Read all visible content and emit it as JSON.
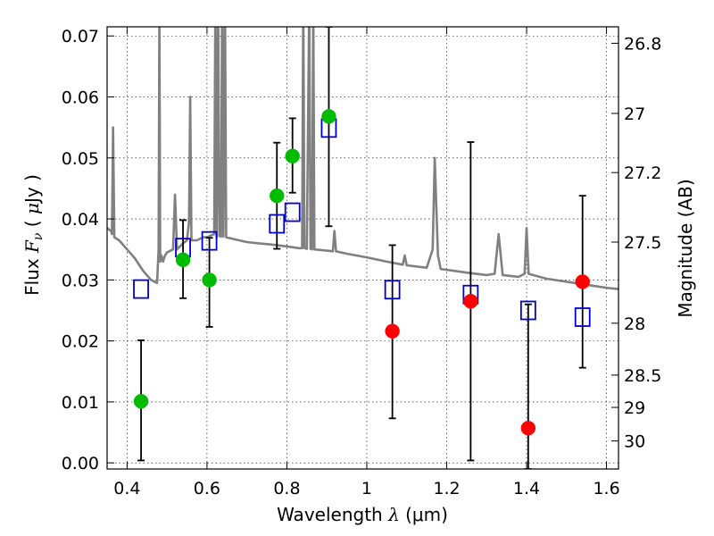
{
  "chart_data": {
    "type": "scatter",
    "xlabel": "Wavelength  λ (μm)",
    "xlabel_main": "Wavelength",
    "xlabel_lambda": "λ",
    "xlabel_unit": "(μm)",
    "ylabel": "Flux  Fν  ( μJy )",
    "ylabel_main": "Flux",
    "ylabel_F": "F",
    "ylabel_nu": "ν",
    "ylabel_unit_open": "(",
    "ylabel_unit_mu": "μ",
    "ylabel_unit_close": "Jy )",
    "y2label": "Magnitude (AB)",
    "xlim": [
      0.35,
      1.63
    ],
    "ylim": [
      -0.001,
      0.0715
    ],
    "grid": true,
    "xticks": [
      0.4,
      0.6,
      0.8,
      1.0,
      1.2,
      1.4,
      1.6
    ],
    "xtick_labels": [
      "0.4",
      "0.6",
      "0.8",
      "1",
      "1.2",
      "1.4",
      "1.6"
    ],
    "yticks": [
      0.0,
      0.01,
      0.02,
      0.03,
      0.04,
      0.05,
      0.06,
      0.07
    ],
    "ytick_labels": [
      "0.00",
      "0.01",
      "0.02",
      "0.03",
      "0.04",
      "0.05",
      "0.06",
      "0.07"
    ],
    "magnitude_ticks": [
      {
        "label": "26.8",
        "flux": 0.0688
      },
      {
        "label": "27",
        "flux": 0.0573
      },
      {
        "label": "27.2",
        "flux": 0.0476
      },
      {
        "label": "27.5",
        "flux": 0.0362
      },
      {
        "label": "28",
        "flux": 0.0229
      },
      {
        "label": "28.5",
        "flux": 0.0144
      },
      {
        "label": "29",
        "flux": 0.0091
      },
      {
        "label": "30",
        "flux": 0.0036
      }
    ],
    "series": [
      {
        "name": "observed-green",
        "marker": "circle",
        "color": "#00bb00",
        "points": [
          {
            "x": 0.435,
            "y": 0.0101,
            "err_low": 0.0004,
            "err_high": 0.0201
          },
          {
            "x": 0.54,
            "y": 0.0333,
            "err_low": 0.027,
            "err_high": 0.0398
          },
          {
            "x": 0.606,
            "y": 0.03,
            "err_low": 0.0223,
            "err_high": 0.0369
          },
          {
            "x": 0.775,
            "y": 0.0438,
            "err_low": 0.0351,
            "err_high": 0.0525
          },
          {
            "x": 0.814,
            "y": 0.0503,
            "err_low": 0.0443,
            "err_high": 0.0565
          },
          {
            "x": 0.905,
            "y": 0.0568,
            "err_low": 0.0388,
            "err_high": 0.0715
          }
        ]
      },
      {
        "name": "observed-red",
        "marker": "circle",
        "color": "#ff0000",
        "points": [
          {
            "x": 1.064,
            "y": 0.0216,
            "err_low": 0.0073,
            "err_high": 0.0357
          },
          {
            "x": 1.26,
            "y": 0.0265,
            "err_low": 0.0004,
            "err_high": 0.0526
          },
          {
            "x": 1.404,
            "y": 0.0057,
            "err_low": -0.001,
            "err_high": 0.026
          },
          {
            "x": 1.54,
            "y": 0.0297,
            "err_low": 0.0156,
            "err_high": 0.0438
          }
        ]
      },
      {
        "name": "model-squares",
        "marker": "square",
        "color": "#0000cc",
        "points": [
          {
            "x": 0.435,
            "y": 0.0285
          },
          {
            "x": 0.54,
            "y": 0.0353
          },
          {
            "x": 0.606,
            "y": 0.0364
          },
          {
            "x": 0.775,
            "y": 0.0392
          },
          {
            "x": 0.814,
            "y": 0.0411
          },
          {
            "x": 0.905,
            "y": 0.0549
          },
          {
            "x": 1.064,
            "y": 0.0284
          },
          {
            "x": 1.26,
            "y": 0.0276
          },
          {
            "x": 1.404,
            "y": 0.025
          },
          {
            "x": 1.54,
            "y": 0.0239
          }
        ]
      }
    ],
    "spectrum": {
      "name": "model-spectrum",
      "color": "#808080",
      "points": [
        [
          0.35,
          0.0385
        ],
        [
          0.36,
          0.038
        ],
        [
          0.362,
          0.0375
        ],
        [
          0.365,
          0.055
        ],
        [
          0.368,
          0.037
        ],
        [
          0.38,
          0.0365
        ],
        [
          0.4,
          0.035
        ],
        [
          0.42,
          0.0335
        ],
        [
          0.44,
          0.0315
        ],
        [
          0.46,
          0.03
        ],
        [
          0.475,
          0.0295
        ],
        [
          0.479,
          0.035
        ],
        [
          0.481,
          0.075
        ],
        [
          0.483,
          0.033
        ],
        [
          0.486,
          0.034
        ],
        [
          0.49,
          0.033
        ],
        [
          0.495,
          0.034
        ],
        [
          0.5,
          0.0345
        ],
        [
          0.515,
          0.035
        ],
        [
          0.52,
          0.044
        ],
        [
          0.525,
          0.035
        ],
        [
          0.54,
          0.036
        ],
        [
          0.55,
          0.0365
        ],
        [
          0.555,
          0.0395
        ],
        [
          0.558,
          0.06
        ],
        [
          0.561,
          0.0365
        ],
        [
          0.575,
          0.0365
        ],
        [
          0.59,
          0.037
        ],
        [
          0.6,
          0.037
        ],
        [
          0.618,
          0.0375
        ],
        [
          0.621,
          0.076
        ],
        [
          0.624,
          0.037
        ],
        [
          0.628,
          0.076
        ],
        [
          0.631,
          0.0372
        ],
        [
          0.635,
          0.0371
        ],
        [
          0.638,
          0.076
        ],
        [
          0.641,
          0.0371
        ],
        [
          0.645,
          0.076
        ],
        [
          0.648,
          0.037
        ],
        [
          0.66,
          0.0368
        ],
        [
          0.68,
          0.0365
        ],
        [
          0.7,
          0.0362
        ],
        [
          0.73,
          0.036
        ],
        [
          0.76,
          0.0358
        ],
        [
          0.8,
          0.0355
        ],
        [
          0.83,
          0.0352
        ],
        [
          0.838,
          0.0352
        ],
        [
          0.841,
          0.076
        ],
        [
          0.844,
          0.0352
        ],
        [
          0.85,
          0.0351
        ],
        [
          0.856,
          0.076
        ],
        [
          0.859,
          0.0351
        ],
        [
          0.863,
          0.035
        ],
        [
          0.866,
          0.076
        ],
        [
          0.869,
          0.035
        ],
        [
          0.9,
          0.0348
        ],
        [
          0.915,
          0.0347
        ],
        [
          0.919,
          0.038
        ],
        [
          0.923,
          0.0347
        ],
        [
          0.95,
          0.0343
        ],
        [
          1.0,
          0.0337
        ],
        [
          1.05,
          0.033
        ],
        [
          1.09,
          0.0325
        ],
        [
          1.095,
          0.034
        ],
        [
          1.1,
          0.0324
        ],
        [
          1.15,
          0.032
        ],
        [
          1.165,
          0.035
        ],
        [
          1.17,
          0.05
        ],
        [
          1.178,
          0.034
        ],
        [
          1.185,
          0.0318
        ],
        [
          1.25,
          0.0312
        ],
        [
          1.3,
          0.0308
        ],
        [
          1.32,
          0.031
        ],
        [
          1.33,
          0.0375
        ],
        [
          1.34,
          0.0308
        ],
        [
          1.38,
          0.0305
        ],
        [
          1.395,
          0.031
        ],
        [
          1.4,
          0.0385
        ],
        [
          1.405,
          0.031
        ],
        [
          1.45,
          0.0302
        ],
        [
          1.5,
          0.0297
        ],
        [
          1.55,
          0.0292
        ],
        [
          1.6,
          0.0287
        ],
        [
          1.63,
          0.0285
        ]
      ]
    }
  }
}
